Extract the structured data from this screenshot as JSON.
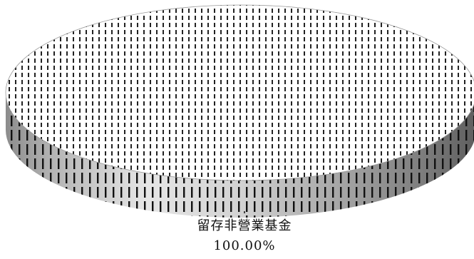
{
  "chart_data": {
    "type": "pie",
    "style": "3d",
    "title": "",
    "slices": [
      {
        "label": "留存非營業基金",
        "value": 100.0,
        "value_label": "100.00%",
        "color": "#c8c8c8"
      }
    ],
    "legend": false
  }
}
